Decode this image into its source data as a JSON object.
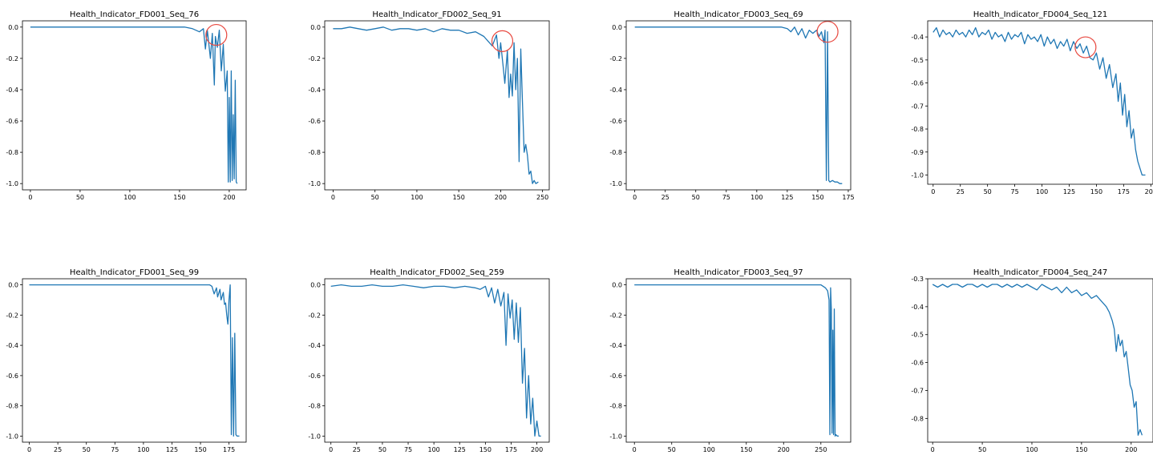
{
  "chart_data": [
    {
      "type": "line",
      "title": "Health_Indicator_FD001_Seq_76",
      "xticks": [
        0,
        50,
        100,
        150,
        200
      ],
      "xlim": [
        -8,
        217
      ],
      "yticks": [
        0.0,
        -0.2,
        -0.4,
        -0.6,
        -0.8,
        -1.0
      ],
      "ylim": [
        -1.04,
        0.04
      ],
      "tick_format": 1,
      "series": [
        {
          "x": [
            0,
            155,
            163,
            170,
            174,
            176,
            178,
            181,
            183,
            185,
            186,
            188,
            190,
            192,
            194,
            195,
            196,
            198,
            199,
            200,
            201,
            202,
            203,
            204,
            205,
            206,
            207,
            208
          ],
          "y": [
            0,
            0,
            -0.01,
            -0.03,
            -0.01,
            -0.14,
            -0.02,
            -0.2,
            -0.04,
            -0.37,
            -0.06,
            -0.13,
            -0.02,
            -0.28,
            -0.11,
            -0.27,
            -0.41,
            -0.28,
            -0.99,
            -0.45,
            -0.99,
            -0.28,
            -0.98,
            -0.56,
            -0.97,
            -0.34,
            -0.99,
            -1.0
          ],
          "color": "#1f77b4"
        }
      ],
      "annotations": [
        {
          "type": "circle",
          "x": 187,
          "y": -0.05,
          "color": "#e8483f"
        }
      ]
    },
    {
      "type": "line",
      "title": "Health_Indicator_FD002_Seq_91",
      "xticks": [
        0,
        50,
        100,
        150,
        200,
        250
      ],
      "xlim": [
        -10,
        258
      ],
      "yticks": [
        0.0,
        -0.2,
        -0.4,
        -0.6,
        -0.8,
        -1.0
      ],
      "ylim": [
        -1.04,
        0.04
      ],
      "tick_format": 1,
      "series": [
        {
          "x": [
            0,
            10,
            20,
            30,
            40,
            50,
            60,
            70,
            80,
            90,
            100,
            110,
            120,
            130,
            140,
            150,
            160,
            170,
            180,
            185,
            190,
            195,
            198,
            200,
            203,
            205,
            208,
            210,
            212,
            214,
            216,
            218,
            220,
            222,
            224,
            226,
            228,
            230,
            232,
            234,
            236,
            238,
            240,
            242,
            245
          ],
          "y": [
            -0.01,
            -0.01,
            0,
            -0.01,
            -0.02,
            -0.01,
            0,
            -0.02,
            -0.01,
            -0.01,
            -0.02,
            -0.01,
            -0.03,
            -0.01,
            -0.02,
            -0.02,
            -0.04,
            -0.03,
            -0.06,
            -0.09,
            -0.12,
            -0.05,
            -0.2,
            -0.1,
            -0.25,
            -0.36,
            -0.15,
            -0.45,
            -0.3,
            -0.44,
            -0.1,
            -0.4,
            -0.2,
            -0.86,
            -0.14,
            -0.48,
            -0.8,
            -0.75,
            -0.82,
            -0.94,
            -0.92,
            -1.0,
            -0.98,
            -1.0,
            -0.99
          ],
          "color": "#1f77b4"
        }
      ],
      "annotations": [
        {
          "type": "circle",
          "x": 202,
          "y": -0.09,
          "color": "#e8483f"
        }
      ]
    },
    {
      "type": "line",
      "title": "Health_Indicator_FD003_Seq_69",
      "xticks": [
        0,
        25,
        50,
        75,
        100,
        125,
        150,
        175
      ],
      "xlim": [
        -7,
        177
      ],
      "yticks": [
        0.0,
        -0.2,
        -0.4,
        -0.6,
        -0.8,
        -1.0
      ],
      "ylim": [
        -1.04,
        0.04
      ],
      "tick_format": 1,
      "series": [
        {
          "x": [
            0,
            120,
            125,
            128,
            131,
            134,
            137,
            140,
            143,
            146,
            149,
            151,
            153,
            155,
            156,
            157,
            158,
            159,
            160,
            162,
            164,
            166,
            168,
            170
          ],
          "y": [
            0,
            0,
            -0.01,
            -0.03,
            0,
            -0.05,
            -0.01,
            -0.07,
            -0.02,
            -0.04,
            -0.02,
            -0.06,
            -0.03,
            -0.1,
            -0.02,
            -0.98,
            -0.03,
            -0.98,
            -0.99,
            -0.98,
            -0.99,
            -0.99,
            -1.0,
            -1.0
          ],
          "color": "#1f77b4"
        }
      ],
      "annotations": [
        {
          "type": "circle",
          "x": 158,
          "y": -0.03,
          "color": "#e8483f"
        }
      ]
    },
    {
      "type": "line",
      "title": "Health_Indicator_FD004_Seq_121",
      "xticks": [
        0,
        25,
        50,
        75,
        100,
        125,
        150,
        175,
        200
      ],
      "xlim": [
        -5,
        202
      ],
      "yticks": [
        -0.4,
        -0.5,
        -0.6,
        -0.7,
        -0.8,
        -0.9,
        -1.0
      ],
      "ylim": [
        -1.04,
        -0.33
      ],
      "tick_format": 1,
      "series": [
        {
          "x": [
            0,
            3,
            6,
            9,
            12,
            15,
            18,
            21,
            24,
            27,
            30,
            33,
            36,
            39,
            42,
            45,
            48,
            51,
            54,
            57,
            60,
            63,
            66,
            69,
            72,
            75,
            78,
            81,
            84,
            87,
            90,
            93,
            96,
            99,
            102,
            105,
            108,
            111,
            114,
            117,
            120,
            123,
            126,
            129,
            132,
            135,
            138,
            141,
            144,
            147,
            150,
            153,
            156,
            159,
            162,
            165,
            168,
            170,
            172,
            174,
            176,
            178,
            180,
            182,
            184,
            186,
            188,
            190,
            192,
            195
          ],
          "y": [
            -0.38,
            -0.36,
            -0.4,
            -0.37,
            -0.39,
            -0.38,
            -0.4,
            -0.37,
            -0.39,
            -0.38,
            -0.4,
            -0.37,
            -0.39,
            -0.36,
            -0.4,
            -0.38,
            -0.39,
            -0.37,
            -0.41,
            -0.38,
            -0.4,
            -0.39,
            -0.42,
            -0.38,
            -0.41,
            -0.39,
            -0.4,
            -0.38,
            -0.43,
            -0.39,
            -0.41,
            -0.4,
            -0.42,
            -0.39,
            -0.44,
            -0.4,
            -0.43,
            -0.41,
            -0.45,
            -0.42,
            -0.44,
            -0.41,
            -0.46,
            -0.42,
            -0.45,
            -0.43,
            -0.47,
            -0.44,
            -0.49,
            -0.5,
            -0.47,
            -0.54,
            -0.49,
            -0.58,
            -0.52,
            -0.62,
            -0.56,
            -0.68,
            -0.6,
            -0.74,
            -0.65,
            -0.79,
            -0.72,
            -0.84,
            -0.8,
            -0.89,
            -0.94,
            -0.97,
            -1.0,
            -1.0
          ],
          "color": "#1f77b4"
        }
      ],
      "annotations": [
        {
          "type": "circle",
          "x": 140,
          "y": -0.445,
          "color": "#e8483f"
        }
      ]
    },
    {
      "type": "line",
      "title": "Health_Indicator_FD001_Seq_99",
      "xticks": [
        0,
        25,
        50,
        75,
        100,
        125,
        150,
        175
      ],
      "xlim": [
        -6,
        190
      ],
      "yticks": [
        0.0,
        -0.2,
        -0.4,
        -0.6,
        -0.8,
        -1.0
      ],
      "ylim": [
        -1.04,
        0.04
      ],
      "tick_format": 1,
      "series": [
        {
          "x": [
            0,
            158,
            160,
            162,
            164,
            165,
            167,
            168,
            170,
            171,
            172,
            173,
            174,
            175,
            176,
            177,
            178,
            179,
            180,
            181,
            182,
            183,
            184
          ],
          "y": [
            0,
            0,
            -0.01,
            -0.06,
            -0.02,
            -0.08,
            -0.03,
            -0.1,
            -0.05,
            -0.13,
            -0.12,
            -0.2,
            -0.26,
            -0.1,
            0,
            -0.99,
            -0.35,
            -1.0,
            -0.32,
            -0.99,
            -1.0,
            -1.0,
            -1.0
          ],
          "color": "#1f77b4"
        }
      ],
      "annotations": []
    },
    {
      "type": "line",
      "title": "Health_Indicator_FD002_Seq_259",
      "xticks": [
        0,
        25,
        50,
        75,
        100,
        125,
        150,
        175,
        200
      ],
      "xlim": [
        -6,
        212
      ],
      "yticks": [
        0.0,
        -0.2,
        -0.4,
        -0.6,
        -0.8,
        -1.0
      ],
      "ylim": [
        -1.04,
        0.04
      ],
      "tick_format": 1,
      "series": [
        {
          "x": [
            0,
            10,
            20,
            30,
            40,
            50,
            60,
            70,
            80,
            90,
            100,
            110,
            120,
            130,
            140,
            145,
            150,
            153,
            156,
            159,
            162,
            165,
            168,
            170,
            172,
            174,
            176,
            178,
            180,
            182,
            184,
            186,
            188,
            190,
            192,
            194,
            196,
            198,
            200,
            202,
            204
          ],
          "y": [
            -0.01,
            0,
            -0.01,
            -0.01,
            0,
            -0.01,
            -0.01,
            0,
            -0.01,
            -0.02,
            -0.01,
            -0.01,
            -0.02,
            -0.01,
            -0.02,
            -0.03,
            -0.01,
            -0.08,
            -0.02,
            -0.12,
            -0.03,
            -0.14,
            -0.05,
            -0.4,
            -0.06,
            -0.22,
            -0.1,
            -0.36,
            -0.12,
            -0.38,
            -0.15,
            -0.65,
            -0.42,
            -0.88,
            -0.6,
            -0.92,
            -0.75,
            -1.0,
            -0.9,
            -1.0,
            -1.0
          ],
          "color": "#1f77b4"
        }
      ],
      "annotations": []
    },
    {
      "type": "line",
      "title": "Health_Indicator_FD003_Seq_97",
      "xticks": [
        0,
        50,
        100,
        150,
        200,
        250
      ],
      "xlim": [
        -11,
        290
      ],
      "yticks": [
        0.0,
        -0.2,
        -0.4,
        -0.6,
        -0.8,
        -1.0
      ],
      "ylim": [
        -1.04,
        0.04
      ],
      "tick_format": 1,
      "series": [
        {
          "x": [
            0,
            250,
            253,
            256,
            259,
            261,
            262,
            263,
            264,
            265,
            266,
            267,
            268,
            269,
            270,
            272,
            274
          ],
          "y": [
            0,
            0,
            -0.01,
            -0.02,
            -0.04,
            -0.1,
            -0.99,
            -0.02,
            -0.16,
            -0.98,
            -0.3,
            -0.99,
            -0.16,
            -1.0,
            -0.99,
            -1.0,
            -1.0
          ],
          "color": "#1f77b4"
        }
      ],
      "annotations": []
    },
    {
      "type": "line",
      "title": "Health_Indicator_FD004_Seq_247",
      "xticks": [
        0,
        50,
        100,
        150,
        200
      ],
      "xlim": [
        -5,
        222
      ],
      "yticks": [
        -0.3,
        -0.4,
        -0.5,
        -0.6,
        -0.7,
        -0.8
      ],
      "ylim": [
        -0.885,
        -0.3
      ],
      "tick_format": 1,
      "series": [
        {
          "x": [
            0,
            5,
            10,
            15,
            20,
            25,
            30,
            35,
            40,
            45,
            50,
            55,
            60,
            65,
            70,
            75,
            80,
            85,
            90,
            95,
            100,
            105,
            110,
            115,
            120,
            125,
            130,
            135,
            140,
            145,
            150,
            155,
            160,
            165,
            170,
            175,
            178,
            181,
            183,
            185,
            187,
            189,
            191,
            193,
            195,
            197,
            199,
            201,
            203,
            205,
            207,
            209,
            211
          ],
          "y": [
            -0.32,
            -0.33,
            -0.32,
            -0.33,
            -0.32,
            -0.32,
            -0.33,
            -0.32,
            -0.32,
            -0.33,
            -0.32,
            -0.33,
            -0.32,
            -0.32,
            -0.33,
            -0.32,
            -0.33,
            -0.32,
            -0.33,
            -0.32,
            -0.33,
            -0.34,
            -0.32,
            -0.33,
            -0.34,
            -0.33,
            -0.35,
            -0.33,
            -0.35,
            -0.34,
            -0.36,
            -0.35,
            -0.37,
            -0.36,
            -0.38,
            -0.4,
            -0.42,
            -0.45,
            -0.48,
            -0.56,
            -0.5,
            -0.54,
            -0.52,
            -0.58,
            -0.56,
            -0.62,
            -0.68,
            -0.7,
            -0.76,
            -0.74,
            -0.86,
            -0.84,
            -0.86
          ],
          "color": "#1f77b4"
        }
      ],
      "annotations": []
    }
  ]
}
